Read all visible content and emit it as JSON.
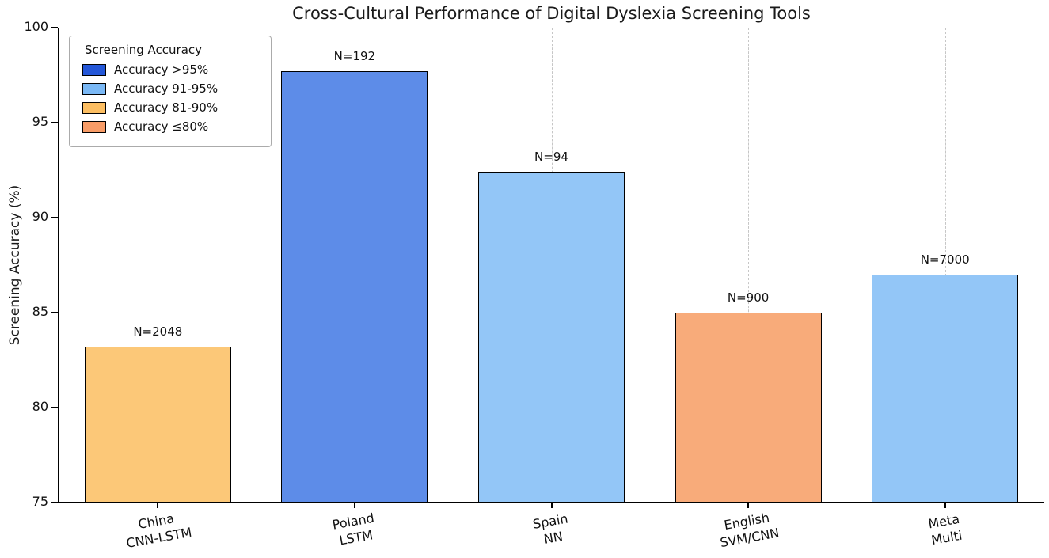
{
  "figure": {
    "title": "Cross-Cultural Performance of Digital Dyslexia Screening Tools"
  },
  "chart_data": {
    "type": "bar",
    "title": "Cross-Cultural Performance of Digital Dyslexia Screening Tools",
    "xlabel": "",
    "ylabel": "Screening Accuracy (%)",
    "ylim": [
      75,
      100
    ],
    "yticks": [
      75,
      80,
      85,
      90,
      95,
      100
    ],
    "grid": "dashed",
    "legend_position": "upper left",
    "categories": [
      "China CNN-LSTM",
      "Poland LSTM",
      "Spain NN",
      "English SVM/CNN",
      "Meta Multi"
    ],
    "category_lines": [
      [
        "China",
        "CNN-LSTM"
      ],
      [
        "Poland",
        "LSTM"
      ],
      [
        "Spain",
        "NN"
      ],
      [
        "English",
        "SVM/CNN"
      ],
      [
        "Meta",
        "Multi"
      ]
    ],
    "values": [
      83.2,
      97.7,
      92.4,
      85.0,
      87.0
    ],
    "n_labels": [
      "N=2048",
      "N=192",
      "N=94",
      "N=900",
      "N=7000"
    ],
    "bar_colors": [
      "#fcc878",
      "#5d8ce8",
      "#93c6f7",
      "#f8ab7a",
      "#93c6f7"
    ],
    "bar_edge_color": "#000000",
    "legend": {
      "title": "Screening Accuracy",
      "entries": [
        {
          "label": "Accuracy >95%",
          "color": "#2457d8"
        },
        {
          "label": "Accuracy 91-95%",
          "color": "#7ab8f5"
        },
        {
          "label": "Accuracy 81-90%",
          "color": "#fcbe62"
        },
        {
          "label": "Accuracy ≤80%",
          "color": "#f89c67"
        }
      ]
    }
  }
}
